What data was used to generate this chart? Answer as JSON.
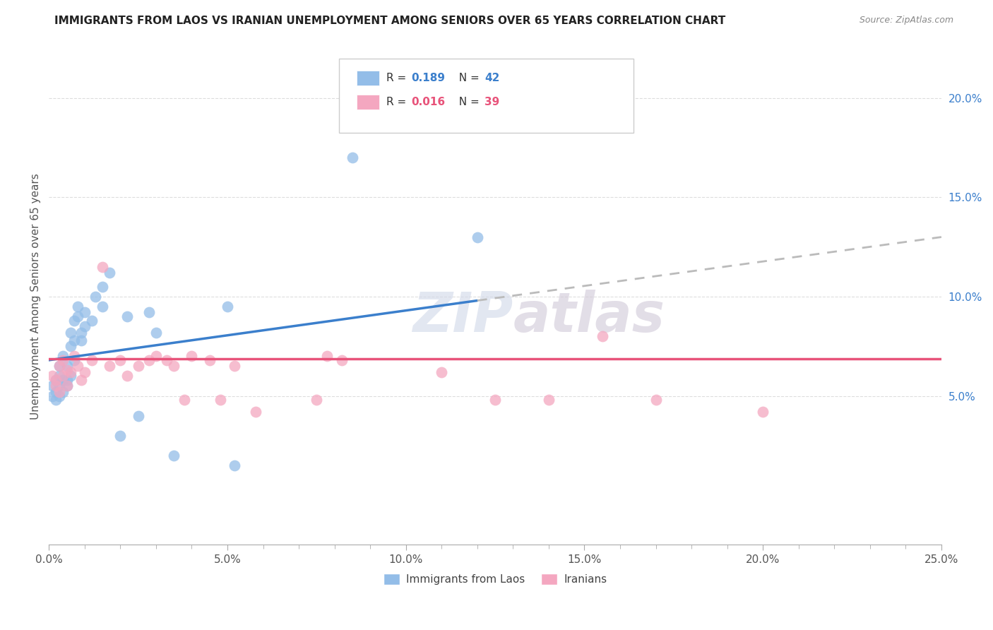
{
  "title": "IMMIGRANTS FROM LAOS VS IRANIAN UNEMPLOYMENT AMONG SENIORS OVER 65 YEARS CORRELATION CHART",
  "source": "Source: ZipAtlas.com",
  "ylabel": "Unemployment Among Seniors over 65 years",
  "legend_label1": "Immigrants from Laos",
  "legend_label2": "Iranians",
  "r1": "0.189",
  "n1": "42",
  "r2": "0.016",
  "n2": "39",
  "xlim": [
    0,
    0.25
  ],
  "ylim": [
    -0.025,
    0.225
  ],
  "xticks": [
    0.0,
    0.05,
    0.1,
    0.15,
    0.2,
    0.25
  ],
  "xticklabels": [
    "0.0%",
    "5.0%",
    "10.0%",
    "15.0%",
    "20.0%",
    "25.0%"
  ],
  "yticks_right": [
    0.05,
    0.1,
    0.15,
    0.2
  ],
  "yticklabels_right": [
    "5.0%",
    "10.0%",
    "15.0%",
    "20.0%"
  ],
  "color_laos": "#93BDE8",
  "color_iranian": "#F4A7C0",
  "color_line_laos": "#3B7FCC",
  "color_line_iranian": "#E8537A",
  "color_line_ext": "#BBBBBB",
  "background": "#FFFFFF",
  "watermark": "ZIPatlas",
  "laos_x": [
    0.001,
    0.001,
    0.002,
    0.002,
    0.002,
    0.003,
    0.003,
    0.003,
    0.003,
    0.004,
    0.004,
    0.004,
    0.005,
    0.005,
    0.005,
    0.006,
    0.006,
    0.006,
    0.007,
    0.007,
    0.007,
    0.008,
    0.008,
    0.009,
    0.009,
    0.01,
    0.01,
    0.012,
    0.013,
    0.015,
    0.015,
    0.017,
    0.02,
    0.022,
    0.025,
    0.028,
    0.03,
    0.035,
    0.05,
    0.052,
    0.085,
    0.12
  ],
  "laos_y": [
    0.055,
    0.05,
    0.048,
    0.058,
    0.052,
    0.05,
    0.055,
    0.06,
    0.065,
    0.052,
    0.058,
    0.07,
    0.065,
    0.058,
    0.055,
    0.06,
    0.075,
    0.082,
    0.068,
    0.078,
    0.088,
    0.09,
    0.095,
    0.082,
    0.078,
    0.085,
    0.092,
    0.088,
    0.1,
    0.095,
    0.105,
    0.112,
    0.03,
    0.09,
    0.04,
    0.092,
    0.082,
    0.02,
    0.095,
    0.015,
    0.17,
    0.13
  ],
  "iranian_x": [
    0.001,
    0.002,
    0.002,
    0.003,
    0.003,
    0.004,
    0.004,
    0.005,
    0.005,
    0.006,
    0.007,
    0.008,
    0.009,
    0.01,
    0.012,
    0.015,
    0.017,
    0.02,
    0.022,
    0.025,
    0.028,
    0.03,
    0.033,
    0.035,
    0.038,
    0.04,
    0.045,
    0.048,
    0.052,
    0.058,
    0.075,
    0.078,
    0.082,
    0.11,
    0.125,
    0.14,
    0.155,
    0.17,
    0.2
  ],
  "iranian_y": [
    0.06,
    0.055,
    0.058,
    0.052,
    0.065,
    0.06,
    0.068,
    0.055,
    0.063,
    0.062,
    0.07,
    0.065,
    0.058,
    0.062,
    0.068,
    0.115,
    0.065,
    0.068,
    0.06,
    0.065,
    0.068,
    0.07,
    0.068,
    0.065,
    0.048,
    0.07,
    0.068,
    0.048,
    0.065,
    0.042,
    0.048,
    0.07,
    0.068,
    0.062,
    0.048,
    0.048,
    0.08,
    0.048,
    0.042
  ],
  "line_laos_x0": 0.0,
  "line_laos_y0": 0.068,
  "line_laos_x1": 0.12,
  "line_laos_y1": 0.098,
  "line_laos_ext_x1": 0.25,
  "line_laos_ext_y1": 0.13,
  "line_iranian_y": 0.0685
}
